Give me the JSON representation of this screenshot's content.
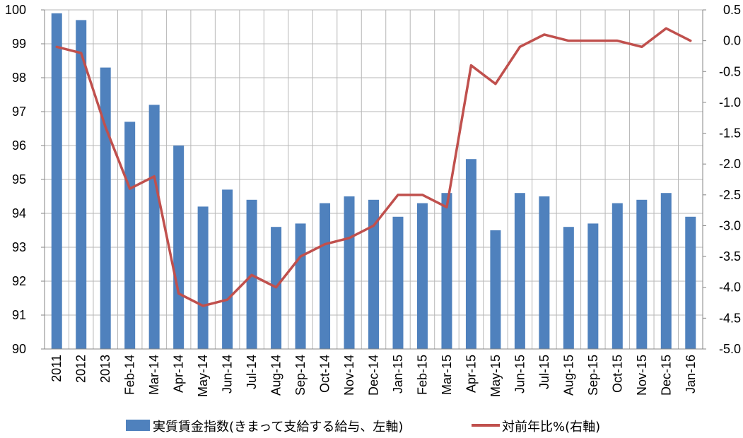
{
  "chart_data": {
    "type": "bar+line",
    "categories": [
      "2011",
      "2012",
      "2013",
      "Feb-14",
      "Mar-14",
      "Apr-14",
      "May-14",
      "Jun-14",
      "Jul-14",
      "Aug-14",
      "Sep-14",
      "Oct-14",
      "Nov-14",
      "Dec-14",
      "Jan-15",
      "Feb-15",
      "Mar-15",
      "Apr-15",
      "May-15",
      "Jun-15",
      "Jul-15",
      "Aug-15",
      "Sep-15",
      "Oct-15",
      "Nov-15",
      "Dec-15",
      "Jan-16"
    ],
    "series": [
      {
        "name": "実質賃金指数(きまって支給する給与、左軸)",
        "type": "bar",
        "axis": "left",
        "color": "#4F81BD",
        "values": [
          99.9,
          99.7,
          98.3,
          96.7,
          97.2,
          96.0,
          94.2,
          94.7,
          94.4,
          93.6,
          93.7,
          94.3,
          94.5,
          94.4,
          93.9,
          94.3,
          94.6,
          95.6,
          93.5,
          94.6,
          94.5,
          93.6,
          93.7,
          94.3,
          94.4,
          94.6,
          93.9
        ]
      },
      {
        "name": "対前年比%(右軸)",
        "type": "line",
        "axis": "right",
        "color": "#C0504D",
        "values": [
          -0.1,
          -0.2,
          -1.4,
          -2.4,
          -2.2,
          -4.1,
          -4.3,
          -4.2,
          -3.8,
          -4.0,
          -3.5,
          -3.3,
          -3.2,
          -3.0,
          -2.5,
          -2.5,
          -2.7,
          -0.4,
          -0.7,
          -0.1,
          0.1,
          0.0,
          0.0,
          0.0,
          -0.1,
          0.2,
          0.0
        ]
      }
    ],
    "y_left": {
      "min": 90,
      "max": 100,
      "ticks": [
        "90",
        "91",
        "92",
        "93",
        "94",
        "95",
        "96",
        "97",
        "98",
        "99",
        "100"
      ]
    },
    "y_right": {
      "min": -5.0,
      "max": 0.5,
      "ticks": [
        "-5.0",
        "-4.5",
        "-4.0",
        "-3.5",
        "-3.0",
        "-2.5",
        "-2.0",
        "-1.5",
        "-1.0",
        "-0.5",
        "0.0",
        "0.5"
      ]
    },
    "grid": "vertical-and-horizontal",
    "legend_position": "bottom"
  }
}
